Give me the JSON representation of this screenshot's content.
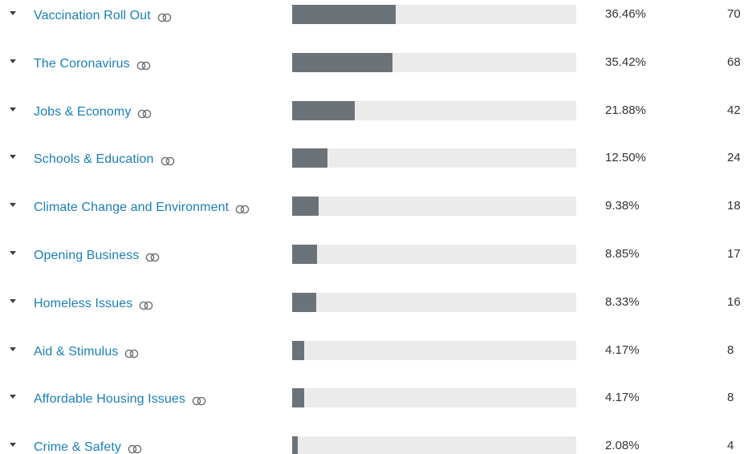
{
  "chart_data": {
    "type": "bar",
    "orientation": "horizontal",
    "categories": [
      "Vaccination Roll Out",
      "The Coronavirus",
      "Jobs & Economy",
      "Schools & Education",
      "Climate Change and Environment",
      "Opening Business",
      "Homeless Issues",
      "Aid & Stimulus",
      "Affordable Housing Issues",
      "Crime & Safety"
    ],
    "values": [
      36.46,
      35.42,
      21.88,
      12.5,
      9.38,
      8.85,
      8.33,
      4.17,
      4.17,
      2.08
    ],
    "percent_labels": [
      "36.46%",
      "35.42%",
      "21.88%",
      "12.50%",
      "9.38%",
      "8.85%",
      "8.33%",
      "4.17%",
      "4.17%",
      "2.08%"
    ],
    "counts": [
      "70",
      "68",
      "42",
      "24",
      "18",
      "17",
      "16",
      "8",
      "8",
      "4"
    ],
    "xlim": [
      0,
      100
    ],
    "title": "",
    "xlabel": "",
    "ylabel": ""
  },
  "colors": {
    "label": "#1b7fb5",
    "bar_fill": "#6b7379",
    "bar_track": "#ebebeb",
    "text": "#2f3337"
  },
  "icons": {
    "row_toggle": "caret-down-icon",
    "label_link": "linked-rings-icon"
  }
}
